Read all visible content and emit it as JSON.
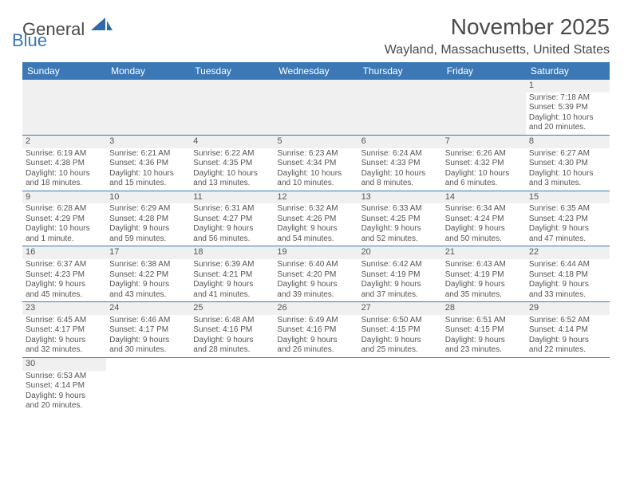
{
  "brand": {
    "part1": "General",
    "part2": "Blue"
  },
  "header": {
    "month_title": "November 2025",
    "location": "Wayland, Massachusetts, United States"
  },
  "colors": {
    "header_bg": "#3b78b5",
    "header_text": "#ffffff",
    "row_divider": "#3b78b5",
    "empty_bg": "#f0f0f0",
    "text": "#555555"
  },
  "weekdays": [
    "Sunday",
    "Monday",
    "Tuesday",
    "Wednesday",
    "Thursday",
    "Friday",
    "Saturday"
  ],
  "weeks": [
    [
      null,
      null,
      null,
      null,
      null,
      null,
      {
        "n": "1",
        "sr": "Sunrise: 7:18 AM",
        "ss": "Sunset: 5:39 PM",
        "dl1": "Daylight: 10 hours",
        "dl2": "and 20 minutes."
      }
    ],
    [
      {
        "n": "2",
        "sr": "Sunrise: 6:19 AM",
        "ss": "Sunset: 4:38 PM",
        "dl1": "Daylight: 10 hours",
        "dl2": "and 18 minutes."
      },
      {
        "n": "3",
        "sr": "Sunrise: 6:21 AM",
        "ss": "Sunset: 4:36 PM",
        "dl1": "Daylight: 10 hours",
        "dl2": "and 15 minutes."
      },
      {
        "n": "4",
        "sr": "Sunrise: 6:22 AM",
        "ss": "Sunset: 4:35 PM",
        "dl1": "Daylight: 10 hours",
        "dl2": "and 13 minutes."
      },
      {
        "n": "5",
        "sr": "Sunrise: 6:23 AM",
        "ss": "Sunset: 4:34 PM",
        "dl1": "Daylight: 10 hours",
        "dl2": "and 10 minutes."
      },
      {
        "n": "6",
        "sr": "Sunrise: 6:24 AM",
        "ss": "Sunset: 4:33 PM",
        "dl1": "Daylight: 10 hours",
        "dl2": "and 8 minutes."
      },
      {
        "n": "7",
        "sr": "Sunrise: 6:26 AM",
        "ss": "Sunset: 4:32 PM",
        "dl1": "Daylight: 10 hours",
        "dl2": "and 6 minutes."
      },
      {
        "n": "8",
        "sr": "Sunrise: 6:27 AM",
        "ss": "Sunset: 4:30 PM",
        "dl1": "Daylight: 10 hours",
        "dl2": "and 3 minutes."
      }
    ],
    [
      {
        "n": "9",
        "sr": "Sunrise: 6:28 AM",
        "ss": "Sunset: 4:29 PM",
        "dl1": "Daylight: 10 hours",
        "dl2": "and 1 minute."
      },
      {
        "n": "10",
        "sr": "Sunrise: 6:29 AM",
        "ss": "Sunset: 4:28 PM",
        "dl1": "Daylight: 9 hours",
        "dl2": "and 59 minutes."
      },
      {
        "n": "11",
        "sr": "Sunrise: 6:31 AM",
        "ss": "Sunset: 4:27 PM",
        "dl1": "Daylight: 9 hours",
        "dl2": "and 56 minutes."
      },
      {
        "n": "12",
        "sr": "Sunrise: 6:32 AM",
        "ss": "Sunset: 4:26 PM",
        "dl1": "Daylight: 9 hours",
        "dl2": "and 54 minutes."
      },
      {
        "n": "13",
        "sr": "Sunrise: 6:33 AM",
        "ss": "Sunset: 4:25 PM",
        "dl1": "Daylight: 9 hours",
        "dl2": "and 52 minutes."
      },
      {
        "n": "14",
        "sr": "Sunrise: 6:34 AM",
        "ss": "Sunset: 4:24 PM",
        "dl1": "Daylight: 9 hours",
        "dl2": "and 50 minutes."
      },
      {
        "n": "15",
        "sr": "Sunrise: 6:35 AM",
        "ss": "Sunset: 4:23 PM",
        "dl1": "Daylight: 9 hours",
        "dl2": "and 47 minutes."
      }
    ],
    [
      {
        "n": "16",
        "sr": "Sunrise: 6:37 AM",
        "ss": "Sunset: 4:23 PM",
        "dl1": "Daylight: 9 hours",
        "dl2": "and 45 minutes."
      },
      {
        "n": "17",
        "sr": "Sunrise: 6:38 AM",
        "ss": "Sunset: 4:22 PM",
        "dl1": "Daylight: 9 hours",
        "dl2": "and 43 minutes."
      },
      {
        "n": "18",
        "sr": "Sunrise: 6:39 AM",
        "ss": "Sunset: 4:21 PM",
        "dl1": "Daylight: 9 hours",
        "dl2": "and 41 minutes."
      },
      {
        "n": "19",
        "sr": "Sunrise: 6:40 AM",
        "ss": "Sunset: 4:20 PM",
        "dl1": "Daylight: 9 hours",
        "dl2": "and 39 minutes."
      },
      {
        "n": "20",
        "sr": "Sunrise: 6:42 AM",
        "ss": "Sunset: 4:19 PM",
        "dl1": "Daylight: 9 hours",
        "dl2": "and 37 minutes."
      },
      {
        "n": "21",
        "sr": "Sunrise: 6:43 AM",
        "ss": "Sunset: 4:19 PM",
        "dl1": "Daylight: 9 hours",
        "dl2": "and 35 minutes."
      },
      {
        "n": "22",
        "sr": "Sunrise: 6:44 AM",
        "ss": "Sunset: 4:18 PM",
        "dl1": "Daylight: 9 hours",
        "dl2": "and 33 minutes."
      }
    ],
    [
      {
        "n": "23",
        "sr": "Sunrise: 6:45 AM",
        "ss": "Sunset: 4:17 PM",
        "dl1": "Daylight: 9 hours",
        "dl2": "and 32 minutes."
      },
      {
        "n": "24",
        "sr": "Sunrise: 6:46 AM",
        "ss": "Sunset: 4:17 PM",
        "dl1": "Daylight: 9 hours",
        "dl2": "and 30 minutes."
      },
      {
        "n": "25",
        "sr": "Sunrise: 6:48 AM",
        "ss": "Sunset: 4:16 PM",
        "dl1": "Daylight: 9 hours",
        "dl2": "and 28 minutes."
      },
      {
        "n": "26",
        "sr": "Sunrise: 6:49 AM",
        "ss": "Sunset: 4:16 PM",
        "dl1": "Daylight: 9 hours",
        "dl2": "and 26 minutes."
      },
      {
        "n": "27",
        "sr": "Sunrise: 6:50 AM",
        "ss": "Sunset: 4:15 PM",
        "dl1": "Daylight: 9 hours",
        "dl2": "and 25 minutes."
      },
      {
        "n": "28",
        "sr": "Sunrise: 6:51 AM",
        "ss": "Sunset: 4:15 PM",
        "dl1": "Daylight: 9 hours",
        "dl2": "and 23 minutes."
      },
      {
        "n": "29",
        "sr": "Sunrise: 6:52 AM",
        "ss": "Sunset: 4:14 PM",
        "dl1": "Daylight: 9 hours",
        "dl2": "and 22 minutes."
      }
    ],
    [
      {
        "n": "30",
        "sr": "Sunrise: 6:53 AM",
        "ss": "Sunset: 4:14 PM",
        "dl1": "Daylight: 9 hours",
        "dl2": "and 20 minutes."
      },
      null,
      null,
      null,
      null,
      null,
      null
    ]
  ]
}
